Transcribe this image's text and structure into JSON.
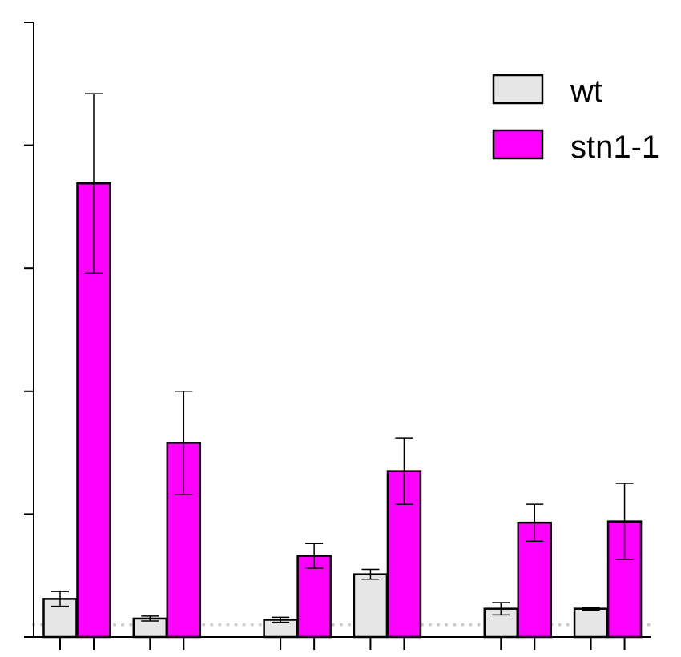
{
  "chart_data": {
    "type": "bar",
    "title": "",
    "xlabel": "",
    "ylabel": "",
    "ylim": [
      0,
      5
    ],
    "y_ticks": [
      0,
      1,
      2,
      3,
      4,
      5
    ],
    "tick_labels_shown": false,
    "grid": false,
    "legend_position": "top-right",
    "reference_line": {
      "y": 0.1,
      "style": "dotted",
      "color": "#cccccc"
    },
    "groups": [
      {
        "center": 1.0
      },
      {
        "center": 2.0
      },
      {
        "center": 3.45
      },
      {
        "center": 4.45
      },
      {
        "center": 5.9
      },
      {
        "center": 6.9
      }
    ],
    "series": [
      {
        "name": "wt",
        "color": "#e6e6e6",
        "values": [
          0.31,
          0.15,
          0.14,
          0.51,
          0.23,
          0.23
        ],
        "errors": [
          0.06,
          0.02,
          0.02,
          0.04,
          0.05,
          0.01
        ]
      },
      {
        "name": "stn1-1",
        "color": "#ff00ff",
        "values": [
          3.69,
          1.58,
          0.66,
          1.35,
          0.93,
          0.94
        ],
        "errors": [
          0.73,
          0.42,
          0.1,
          0.27,
          0.15,
          0.31
        ]
      }
    ]
  }
}
